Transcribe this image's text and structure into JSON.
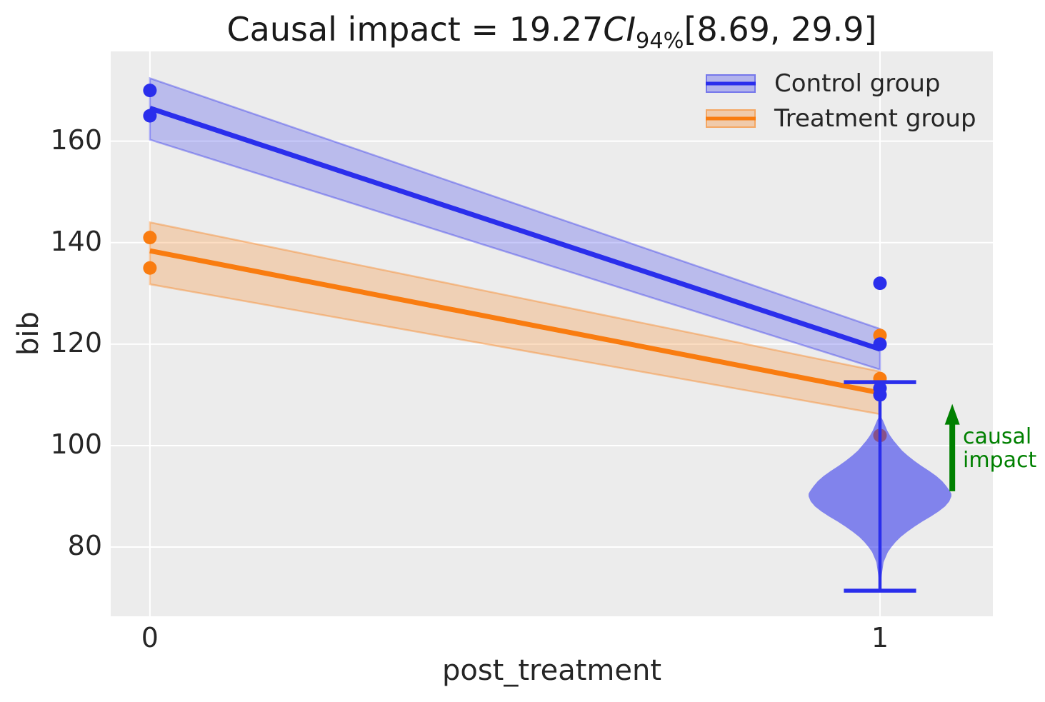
{
  "chart_data": {
    "type": "line",
    "title_parts": {
      "prefix": "Causal impact = 19.27",
      "ci": "CI",
      "sub": "94%",
      "suffix": "[8.69, 29.9]"
    },
    "xlabel": "post_treatment",
    "ylabel": "bib",
    "xlim": [
      -0.0537,
      1.1546
    ],
    "ylim": [
      66.35,
      177.69
    ],
    "xticks": [
      {
        "v": 0,
        "label": "0"
      },
      {
        "v": 1,
        "label": "1"
      }
    ],
    "yticks": [
      {
        "v": 80,
        "label": "80"
      },
      {
        "v": 100,
        "label": "100"
      },
      {
        "v": 120,
        "label": "120"
      },
      {
        "v": 140,
        "label": "140"
      },
      {
        "v": 160,
        "label": "160"
      }
    ],
    "background": "#ececec",
    "grid_color": "#ffffff",
    "legend_position": "upper right",
    "series": [
      {
        "name": "Control group",
        "color": "#2a2eec",
        "band_alpha": 0.26,
        "x": [
          0,
          1
        ],
        "y": [
          166.5,
          119.0
        ],
        "band_upper": [
          172.4,
          123.0
        ],
        "band_lower": [
          160.3,
          115.0
        ],
        "scatter": [
          [
            0,
            170
          ],
          [
            0,
            165
          ],
          [
            1,
            132
          ],
          [
            1,
            120
          ],
          [
            1,
            111.3
          ],
          [
            1,
            110
          ]
        ]
      },
      {
        "name": "Treatment group",
        "color": "#f97c10",
        "band_alpha": 0.25,
        "x": [
          0,
          1
        ],
        "y": [
          138.4,
          110.4
        ],
        "band_upper": [
          144.0,
          114.6
        ],
        "band_lower": [
          131.8,
          106.2
        ],
        "scatter": [
          [
            0,
            141
          ],
          [
            0,
            135
          ],
          [
            1,
            121.7
          ],
          [
            1,
            113.2
          ]
        ],
        "scatter_under_violin": [
          [
            1,
            102
          ]
        ]
      }
    ],
    "violin": {
      "x": 1,
      "color": "#2a2eec",
      "fill_alpha": 0.55,
      "whisker_range": [
        71.4,
        112.5
      ],
      "cap_halfwidth": 0.0495,
      "stem_width": 4.5,
      "profile": [
        [
          106.0,
          0.0
        ],
        [
          105.0,
          0.0039
        ],
        [
          104.0,
          0.0068
        ],
        [
          103.0,
          0.0098
        ],
        [
          102.0,
          0.0137
        ],
        [
          101.0,
          0.0186
        ],
        [
          100.0,
          0.0245
        ],
        [
          99.0,
          0.0303
        ],
        [
          98.0,
          0.0382
        ],
        [
          97.0,
          0.047
        ],
        [
          96.0,
          0.0568
        ],
        [
          95.0,
          0.0675
        ],
        [
          94.0,
          0.0773
        ],
        [
          93.0,
          0.0851
        ],
        [
          92.0,
          0.091
        ],
        [
          91.0,
          0.0959
        ],
        [
          90.5,
          0.0978
        ],
        [
          90.0,
          0.0978
        ],
        [
          89.0,
          0.0949
        ],
        [
          88.0,
          0.089
        ],
        [
          87.0,
          0.0802
        ],
        [
          86.0,
          0.0695
        ],
        [
          85.0,
          0.0577
        ],
        [
          84.0,
          0.047
        ],
        [
          83.0,
          0.0372
        ],
        [
          82.0,
          0.0284
        ],
        [
          81.0,
          0.0215
        ],
        [
          80.0,
          0.0157
        ],
        [
          79.0,
          0.0108
        ],
        [
          78.0,
          0.0078
        ],
        [
          77.0,
          0.0049
        ],
        [
          76.0,
          0.0039
        ],
        [
          75.0,
          0.0029
        ],
        [
          74.0,
          0.002
        ],
        [
          73.0,
          0.0015
        ],
        [
          72.0,
          0.001
        ],
        [
          71.5,
          0.0005
        ]
      ]
    },
    "annotation": {
      "color": "#008000",
      "arrow_x": 1.099,
      "arrow_from": 91,
      "arrow_to": 108.2,
      "text_x": 1.1135,
      "text_top": 104.1,
      "lines": [
        "causal",
        "impact"
      ]
    }
  }
}
